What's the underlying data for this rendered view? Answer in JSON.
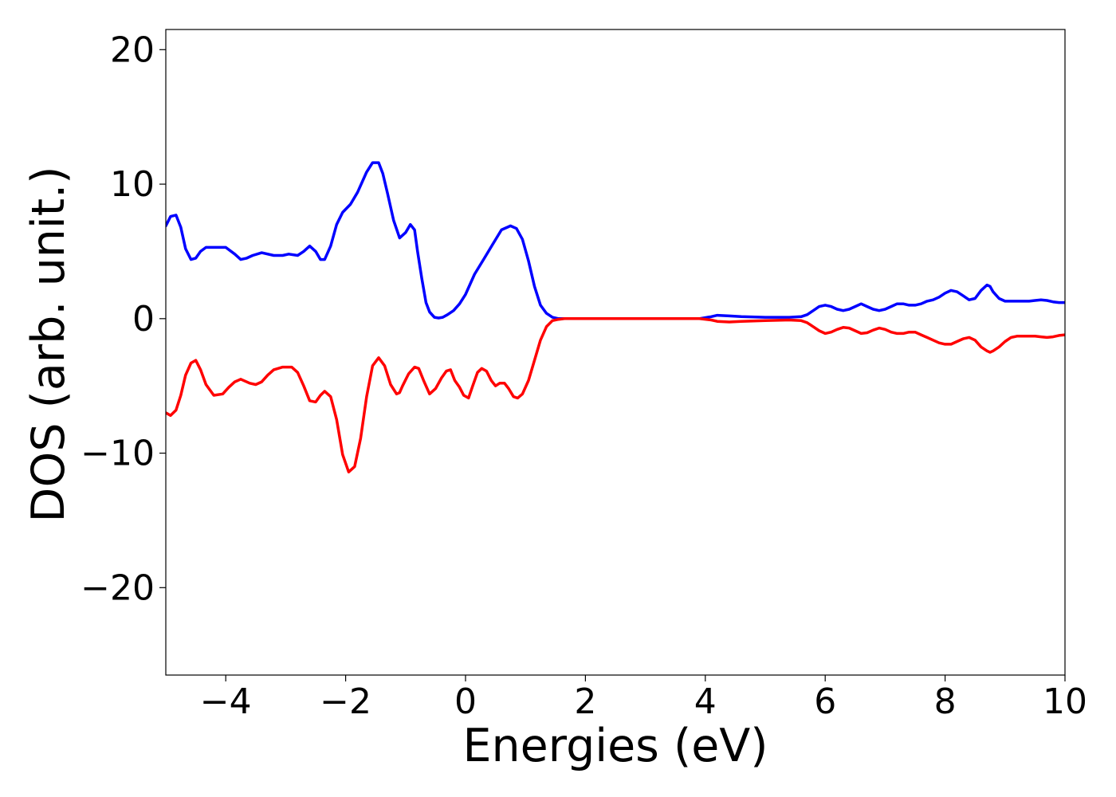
{
  "chart_data": {
    "type": "line",
    "title": "",
    "xlabel": "Energies (eV)",
    "ylabel": "DOS (arb. unit.)",
    "xlim": [
      -5,
      10
    ],
    "ylim": [
      -26.5,
      21.5
    ],
    "xticks": [
      -4,
      -2,
      0,
      2,
      4,
      6,
      8,
      10
    ],
    "xtick_labels": [
      "−4",
      "−2",
      "0",
      "2",
      "4",
      "6",
      "8",
      "10"
    ],
    "yticks": [
      -20,
      -10,
      0,
      10,
      20
    ],
    "ytick_labels": [
      "−20",
      "−10",
      "0",
      "10",
      "20"
    ],
    "grid": false,
    "legend": null,
    "series": [
      {
        "color": "#0000ff",
        "x": [
          -5.0,
          -4.92,
          -4.83,
          -4.75,
          -4.67,
          -4.58,
          -4.5,
          -4.42,
          -4.33,
          -4.2,
          -4.0,
          -3.85,
          -3.75,
          -3.65,
          -3.55,
          -3.4,
          -3.2,
          -3.05,
          -2.95,
          -2.8,
          -2.7,
          -2.6,
          -2.5,
          -2.42,
          -2.35,
          -2.25,
          -2.15,
          -2.05,
          -1.92,
          -1.8,
          -1.65,
          -1.55,
          -1.45,
          -1.38,
          -1.3,
          -1.2,
          -1.1,
          -1.0,
          -0.92,
          -0.85,
          -0.8,
          -0.73,
          -0.66,
          -0.6,
          -0.52,
          -0.45,
          -0.38,
          -0.3,
          -0.2,
          -0.1,
          0.0,
          0.15,
          0.3,
          0.45,
          0.6,
          0.75,
          0.85,
          0.95,
          1.05,
          1.15,
          1.25,
          1.35,
          1.45,
          1.55,
          1.65,
          1.8,
          2.0,
          2.5,
          3.0,
          3.5,
          3.9,
          4.1,
          4.2,
          4.4,
          4.6,
          5.0,
          5.4,
          5.6,
          5.7,
          5.8,
          5.9,
          6.0,
          6.1,
          6.2,
          6.3,
          6.4,
          6.5,
          6.6,
          6.7,
          6.8,
          6.9,
          7.0,
          7.1,
          7.2,
          7.3,
          7.4,
          7.5,
          7.6,
          7.7,
          7.8,
          7.9,
          8.0,
          8.1,
          8.2,
          8.3,
          8.4,
          8.5,
          8.6,
          8.7,
          8.75,
          8.8,
          8.9,
          9.0,
          9.1,
          9.2,
          9.3,
          9.4,
          9.5,
          9.6,
          9.7,
          9.8,
          9.9,
          10.0
        ],
        "y": [
          6.9,
          7.6,
          7.7,
          6.8,
          5.2,
          4.4,
          4.5,
          5.0,
          5.3,
          5.3,
          5.3,
          4.8,
          4.4,
          4.5,
          4.7,
          4.9,
          4.7,
          4.7,
          4.8,
          4.7,
          5.0,
          5.4,
          5.0,
          4.4,
          4.4,
          5.4,
          7.0,
          7.9,
          8.5,
          9.4,
          10.9,
          11.6,
          11.6,
          10.8,
          9.3,
          7.3,
          6.0,
          6.4,
          7.0,
          6.6,
          5.0,
          3.0,
          1.2,
          0.5,
          0.1,
          0.05,
          0.1,
          0.3,
          0.6,
          1.1,
          1.8,
          3.3,
          4.4,
          5.5,
          6.6,
          6.9,
          6.7,
          5.9,
          4.3,
          2.4,
          1.0,
          0.4,
          0.1,
          0.0,
          0.0,
          0.0,
          0.0,
          0.0,
          0.0,
          0.0,
          0.0,
          0.15,
          0.25,
          0.2,
          0.15,
          0.1,
          0.1,
          0.15,
          0.3,
          0.6,
          0.9,
          1.0,
          0.9,
          0.7,
          0.6,
          0.7,
          0.9,
          1.1,
          0.9,
          0.7,
          0.6,
          0.7,
          0.9,
          1.1,
          1.1,
          1.0,
          1.0,
          1.1,
          1.3,
          1.4,
          1.6,
          1.9,
          2.1,
          2.0,
          1.7,
          1.4,
          1.5,
          2.1,
          2.5,
          2.4,
          2.0,
          1.5,
          1.3,
          1.3,
          1.3,
          1.3,
          1.3,
          1.35,
          1.4,
          1.35,
          1.25,
          1.2,
          1.2
        ]
      },
      {
        "color": "#ff0000",
        "x": [
          -5.0,
          -4.92,
          -4.83,
          -4.75,
          -4.67,
          -4.58,
          -4.5,
          -4.42,
          -4.33,
          -4.2,
          -4.05,
          -3.95,
          -3.85,
          -3.75,
          -3.6,
          -3.5,
          -3.4,
          -3.3,
          -3.2,
          -3.05,
          -2.9,
          -2.8,
          -2.7,
          -2.6,
          -2.5,
          -2.42,
          -2.35,
          -2.25,
          -2.15,
          -2.05,
          -1.95,
          -1.85,
          -1.75,
          -1.65,
          -1.55,
          -1.45,
          -1.35,
          -1.25,
          -1.15,
          -1.1,
          -1.05,
          -0.95,
          -0.85,
          -0.78,
          -0.7,
          -0.6,
          -0.5,
          -0.4,
          -0.32,
          -0.25,
          -0.18,
          -0.1,
          -0.03,
          0.05,
          0.12,
          0.2,
          0.27,
          0.35,
          0.43,
          0.5,
          0.57,
          0.65,
          0.72,
          0.8,
          0.87,
          0.95,
          1.05,
          1.15,
          1.25,
          1.35,
          1.45,
          1.55,
          1.65,
          1.8,
          2.0,
          2.5,
          3.0,
          3.5,
          3.9,
          4.1,
          4.2,
          4.4,
          4.6,
          5.0,
          5.4,
          5.6,
          5.7,
          5.8,
          5.9,
          6.0,
          6.1,
          6.2,
          6.3,
          6.4,
          6.5,
          6.6,
          6.7,
          6.8,
          6.9,
          7.0,
          7.1,
          7.2,
          7.3,
          7.4,
          7.5,
          7.6,
          7.7,
          7.8,
          7.9,
          8.0,
          8.1,
          8.2,
          8.3,
          8.4,
          8.5,
          8.6,
          8.7,
          8.75,
          8.8,
          8.9,
          9.0,
          9.1,
          9.2,
          9.3,
          9.4,
          9.5,
          9.6,
          9.7,
          9.8,
          9.9,
          10.0
        ],
        "y": [
          -7.0,
          -7.2,
          -6.8,
          -5.7,
          -4.2,
          -3.3,
          -3.1,
          -3.8,
          -4.9,
          -5.7,
          -5.6,
          -5.1,
          -4.7,
          -4.5,
          -4.8,
          -4.9,
          -4.7,
          -4.2,
          -3.8,
          -3.6,
          -3.6,
          -4.0,
          -5.0,
          -6.1,
          -6.2,
          -5.7,
          -5.4,
          -5.8,
          -7.5,
          -10.1,
          -11.4,
          -11.0,
          -8.9,
          -5.8,
          -3.5,
          -2.9,
          -3.5,
          -4.9,
          -5.6,
          -5.5,
          -5.0,
          -4.1,
          -3.6,
          -3.7,
          -4.6,
          -5.6,
          -5.2,
          -4.4,
          -3.9,
          -3.8,
          -4.6,
          -5.1,
          -5.7,
          -5.9,
          -5.0,
          -4.0,
          -3.7,
          -3.9,
          -4.6,
          -5.0,
          -4.8,
          -4.8,
          -5.2,
          -5.8,
          -5.9,
          -5.6,
          -4.6,
          -3.1,
          -1.6,
          -0.6,
          -0.15,
          -0.05,
          0.0,
          0.0,
          0.0,
          0.0,
          0.0,
          0.0,
          0.0,
          -0.1,
          -0.2,
          -0.25,
          -0.2,
          -0.15,
          -0.1,
          -0.15,
          -0.3,
          -0.6,
          -0.9,
          -1.1,
          -1.0,
          -0.8,
          -0.65,
          -0.7,
          -0.9,
          -1.1,
          -1.05,
          -0.85,
          -0.7,
          -0.8,
          -1.0,
          -1.1,
          -1.1,
          -1.0,
          -1.0,
          -1.2,
          -1.4,
          -1.6,
          -1.8,
          -1.9,
          -1.9,
          -1.7,
          -1.5,
          -1.4,
          -1.6,
          -2.1,
          -2.4,
          -2.5,
          -2.4,
          -2.1,
          -1.7,
          -1.4,
          -1.3,
          -1.3,
          -1.3,
          -1.3,
          -1.35,
          -1.4,
          -1.35,
          -1.25,
          -1.2
        ]
      }
    ]
  }
}
